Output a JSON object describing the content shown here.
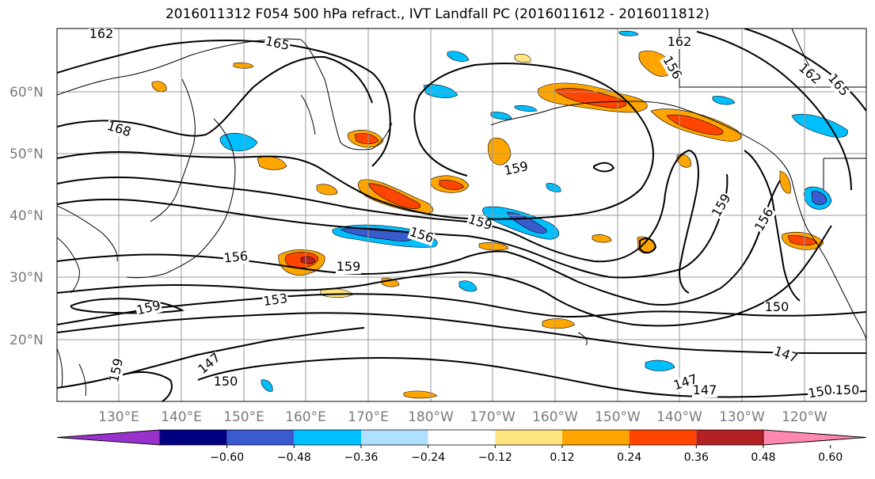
{
  "title": "2016011312 F054 500 hPa refract., IVT Landfall PC (2016011612 - 2016011812)",
  "lat_labels": [
    "60°N",
    "50°N",
    "40°N",
    "30°N",
    "20°N"
  ],
  "lon_labels": [
    "130°E",
    "140°E",
    "150°E",
    "160°E",
    "170°E",
    "180°W",
    "170°W",
    "160°W",
    "150°W",
    "140°W",
    "130°W",
    "120°W"
  ],
  "contour_labels": [
    "162",
    "165",
    "162",
    "168",
    "162",
    "165",
    "159",
    "159",
    "156",
    "159",
    "156",
    "159",
    "159",
    "156",
    "153",
    "159",
    "150",
    "147",
    "147",
    "147",
    "150",
    "147",
    "150",
    "150",
    "156"
  ],
  "colorbar": {
    "tick_labels": [
      "−0.60",
      "−0.48",
      "−0.36",
      "−0.24",
      "−0.12",
      "0.12",
      "0.24",
      "0.36",
      "0.48",
      "0.60"
    ],
    "colors": [
      "#9932cc",
      "#000080",
      "#3a5bd0",
      "#00bfff",
      "#b0e0ff",
      "#ffffff",
      "#ffe57f",
      "#ffa500",
      "#ff4500",
      "#b22222",
      "#ff88b0"
    ]
  }
}
